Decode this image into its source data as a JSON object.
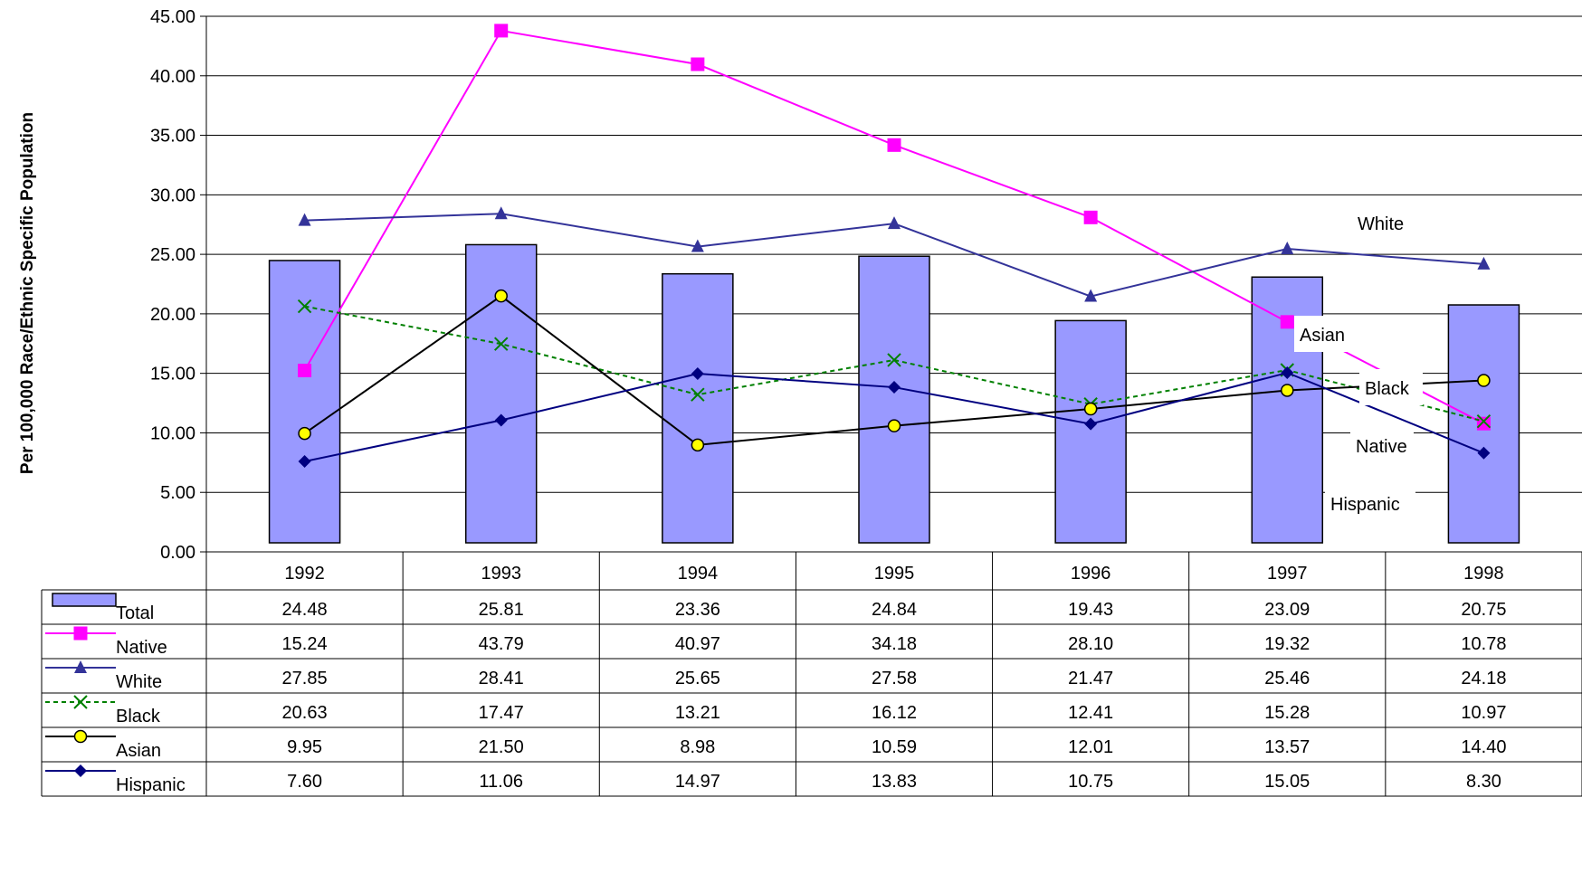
{
  "chart_data": {
    "type": "bar",
    "combo": "bar + lines with data table",
    "ylabel": "Per 100,000 Race/Ethnic Specific Population",
    "ylim": [
      0,
      45
    ],
    "yticks": [
      "0.00",
      "5.00",
      "10.00",
      "15.00",
      "20.00",
      "25.00",
      "30.00",
      "35.00",
      "40.00",
      "45.00"
    ],
    "grid": "horizontal",
    "categories": [
      "1992",
      "1993",
      "1994",
      "1995",
      "1996",
      "1997",
      "1998"
    ],
    "series": [
      {
        "name": "Total",
        "kind": "bar",
        "color": "#9999ff",
        "values": [
          24.48,
          25.81,
          23.36,
          24.84,
          19.43,
          23.09,
          20.75
        ],
        "table_values": [
          "24.48",
          "25.81",
          "23.36",
          "24.84",
          "19.43",
          "23.09",
          "20.75"
        ]
      },
      {
        "name": "Native",
        "kind": "line",
        "color": "#ff00ff",
        "marker": "square",
        "values": [
          15.24,
          43.79,
          40.97,
          34.18,
          28.1,
          19.32,
          10.78
        ],
        "table_values": [
          "15.24",
          "43.79",
          "40.97",
          "34.18",
          "28.10",
          "19.32",
          "10.78"
        ]
      },
      {
        "name": "White",
        "kind": "line",
        "color": "#333399",
        "marker": "triangle",
        "values": [
          27.85,
          28.41,
          25.65,
          27.58,
          21.47,
          25.46,
          24.18
        ],
        "table_values": [
          "27.85",
          "28.41",
          "25.65",
          "27.58",
          "21.47",
          "25.46",
          "24.18"
        ]
      },
      {
        "name": "Black",
        "kind": "line",
        "color": "#008000",
        "marker": "x",
        "dashed": true,
        "values": [
          20.63,
          17.47,
          13.21,
          16.12,
          12.41,
          15.28,
          10.97
        ],
        "table_values": [
          "20.63",
          "17.47",
          "13.21",
          "16.12",
          "12.41",
          "15.28",
          "10.97"
        ]
      },
      {
        "name": "Asian",
        "kind": "line",
        "color": "#000000",
        "marker": "circle",
        "values": [
          9.95,
          21.5,
          8.98,
          10.59,
          12.01,
          13.57,
          14.4
        ],
        "table_values": [
          "9.95",
          "21.50",
          "8.98",
          "10.59",
          "12.01",
          "13.57",
          "14.40"
        ]
      },
      {
        "name": "Hispanic",
        "kind": "line",
        "color": "#000080",
        "marker": "diamond",
        "values": [
          7.6,
          11.06,
          14.97,
          13.83,
          10.75,
          15.05,
          8.3
        ],
        "table_values": [
          "7.60",
          "11.06",
          "14.97",
          "13.83",
          "10.75",
          "15.05",
          "8.30"
        ]
      }
    ],
    "end_labels": [
      "White",
      "Asian",
      "Black",
      "Native",
      "Hispanic"
    ]
  }
}
